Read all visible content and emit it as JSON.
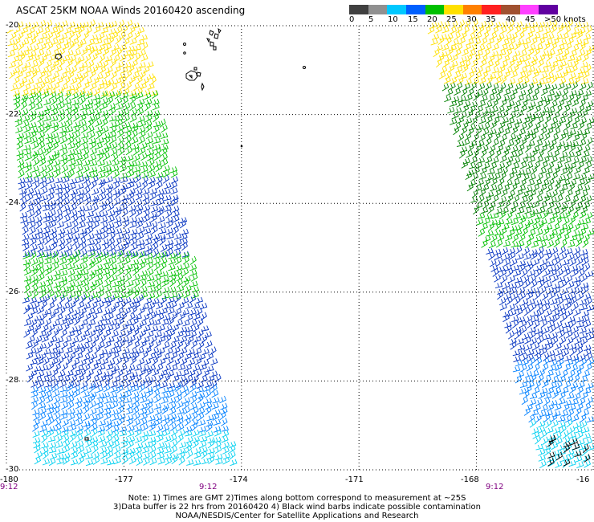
{
  "title": "ASCAT 25KM NOAA Winds 20160420 ascending",
  "colorbar": {
    "labels": [
      "0",
      "5",
      "10",
      "15",
      "20",
      "25",
      "30",
      "35",
      "40",
      "45",
      ">50 knots"
    ],
    "colors": [
      "#404040",
      "#909090",
      "#00c8ff",
      "#0060ff",
      "#00c000",
      "#ffe000",
      "#ff8000",
      "#ff2020",
      "#a05030",
      "#ff40ff",
      "#6000a0"
    ]
  },
  "axes": {
    "lat_labels": [
      "-20",
      "-22",
      "-24",
      "-26",
      "-28",
      "-30"
    ],
    "lon_labels": [
      "-180",
      "-177",
      "-174",
      "-171",
      "-168",
      "-16"
    ],
    "lat_range": [
      -30,
      -20
    ],
    "lon_range": [
      -180,
      -165
    ]
  },
  "pass_times": [
    "9:12",
    "9:12",
    "9:12"
  ],
  "notes": [
    "Note: 1) Times are GMT 2)Times along bottom correspond to measurement at ~25S",
    "3)Data buffer is 22 hrs from 20160420 4) Black wind barbs indicate possible contamination",
    "NOAA/NESDIS/Center for Satellite Applications and Research"
  ],
  "swaths": [
    {
      "name": "left-swath",
      "bands": [
        {
          "lat_from": -20.0,
          "lat_to": -21.6,
          "color": "#ffe000"
        },
        {
          "lat_from": -21.6,
          "lat_to": -23.5,
          "color": "#00c000"
        },
        {
          "lat_from": -23.5,
          "lat_to": -25.2,
          "color": "#0030c0"
        },
        {
          "lat_from": -25.2,
          "lat_to": -26.2,
          "color": "#00c000"
        },
        {
          "lat_from": -26.2,
          "lat_to": -28.2,
          "color": "#0030c0"
        },
        {
          "lat_from": -28.2,
          "lat_to": -29.2,
          "color": "#0080ff"
        },
        {
          "lat_from": -29.2,
          "lat_to": -30.0,
          "color": "#00d0f0"
        }
      ]
    },
    {
      "name": "right-swath",
      "bands": [
        {
          "lat_from": -20.0,
          "lat_to": -21.4,
          "color": "#ffe000"
        },
        {
          "lat_from": -21.4,
          "lat_to": -24.3,
          "color": "#008000"
        },
        {
          "lat_from": -24.3,
          "lat_to": -25.1,
          "color": "#00c000"
        },
        {
          "lat_from": -25.1,
          "lat_to": -27.6,
          "color": "#0030c0"
        },
        {
          "lat_from": -27.6,
          "lat_to": -29.0,
          "color": "#0080ff"
        },
        {
          "lat_from": -29.0,
          "lat_to": -30.0,
          "color": "#00d0f0"
        }
      ]
    }
  ]
}
